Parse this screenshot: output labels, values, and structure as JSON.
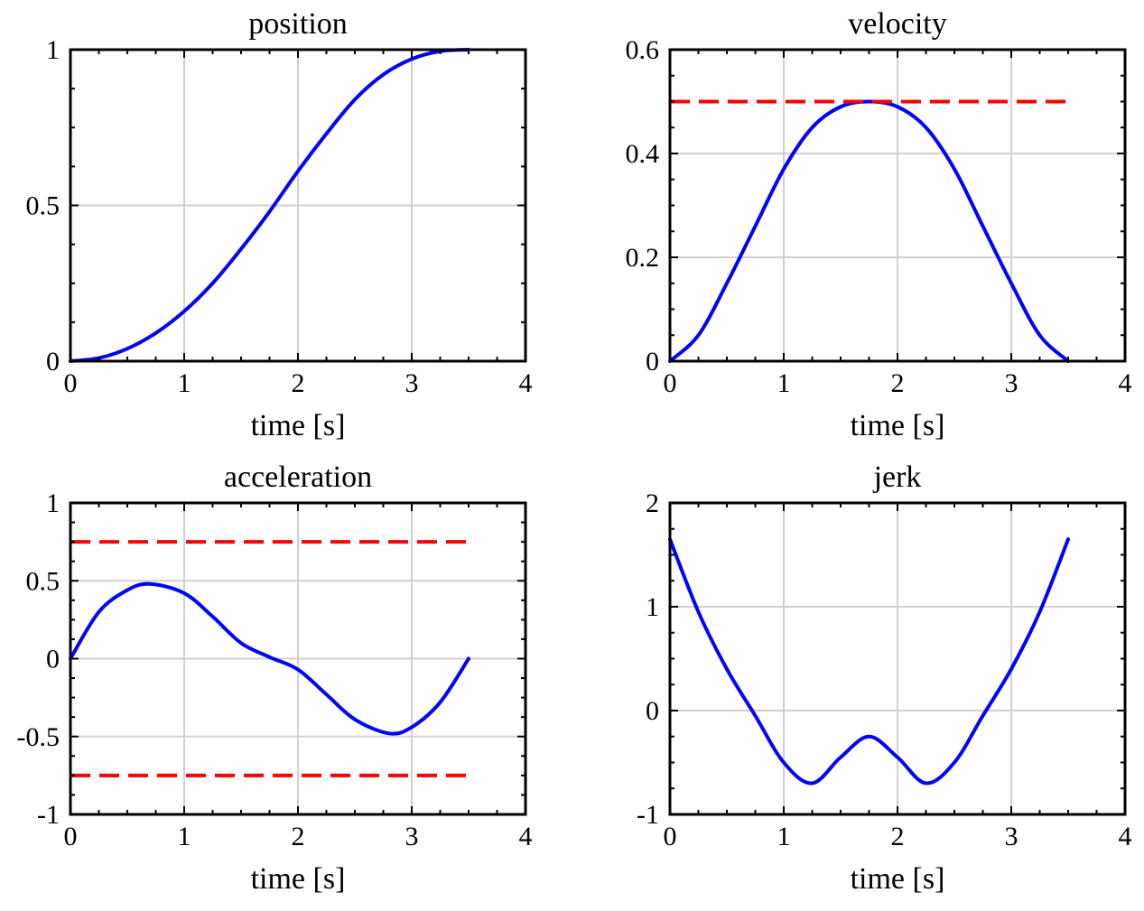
{
  "chart_data": [
    {
      "type": "line",
      "title": "position",
      "xlabel": "time [s]",
      "ylabel": "",
      "xlim": [
        0,
        4
      ],
      "ylim": [
        0,
        1
      ],
      "xticks": [
        0,
        1,
        2,
        3,
        4
      ],
      "xtick_labels": [
        "0",
        "1",
        "2",
        "3",
        "4"
      ],
      "yticks": [
        0,
        0.5,
        1
      ],
      "ytick_labels": [
        "0",
        "0.5",
        "1"
      ],
      "minor_ticks_per_major": 4,
      "grid": true,
      "series": [
        {
          "name": "position",
          "color": "#0000ff",
          "style": "solid",
          "x": [
            0,
            0.25,
            0.5,
            0.75,
            1.0,
            1.25,
            1.5,
            1.75,
            2.0,
            2.25,
            2.5,
            2.75,
            3.0,
            3.25,
            3.5
          ],
          "y": [
            0,
            0.01,
            0.04,
            0.09,
            0.16,
            0.25,
            0.36,
            0.48,
            0.61,
            0.73,
            0.84,
            0.92,
            0.97,
            0.995,
            1.0
          ]
        }
      ]
    },
    {
      "type": "line",
      "title": "velocity",
      "xlabel": "time [s]",
      "ylabel": "",
      "xlim": [
        0,
        4
      ],
      "ylim": [
        0,
        0.6
      ],
      "xticks": [
        0,
        1,
        2,
        3,
        4
      ],
      "xtick_labels": [
        "0",
        "1",
        "2",
        "3",
        "4"
      ],
      "yticks": [
        0,
        0.2,
        0.4,
        0.6
      ],
      "ytick_labels": [
        "0",
        "0.2",
        "0.4",
        "0.6"
      ],
      "minor_ticks_per_major": 4,
      "grid": true,
      "series": [
        {
          "name": "velocity",
          "color": "#0000ff",
          "style": "solid",
          "x": [
            0,
            0.25,
            0.5,
            0.75,
            1.0,
            1.25,
            1.5,
            1.75,
            2.0,
            2.25,
            2.5,
            2.75,
            3.0,
            3.25,
            3.5
          ],
          "y": [
            0,
            0.05,
            0.15,
            0.26,
            0.37,
            0.45,
            0.49,
            0.5,
            0.49,
            0.45,
            0.37,
            0.26,
            0.15,
            0.05,
            0
          ]
        },
        {
          "name": "velocity limit",
          "color": "#ff0000",
          "style": "dashed",
          "x": [
            0,
            3.5
          ],
          "y": [
            0.5,
            0.5
          ]
        }
      ]
    },
    {
      "type": "line",
      "title": "acceleration",
      "xlabel": "time [s]",
      "ylabel": "",
      "xlim": [
        0,
        4
      ],
      "ylim": [
        -1,
        1
      ],
      "xticks": [
        0,
        1,
        2,
        3,
        4
      ],
      "xtick_labels": [
        "0",
        "1",
        "2",
        "3",
        "4"
      ],
      "yticks": [
        -1,
        -0.5,
        0,
        0.5,
        1
      ],
      "ytick_labels": [
        "-1",
        "-0.5",
        "0",
        "0.5",
        "1"
      ],
      "minor_ticks_per_major": 4,
      "grid": true,
      "series": [
        {
          "name": "acceleration",
          "color": "#0000ff",
          "style": "solid",
          "x": [
            0,
            0.25,
            0.5,
            0.7,
            1.0,
            1.25,
            1.5,
            1.75,
            2.0,
            2.25,
            2.5,
            2.8,
            3.0,
            3.25,
            3.5
          ],
          "y": [
            0,
            0.3,
            0.44,
            0.48,
            0.42,
            0.27,
            0.1,
            0.01,
            -0.07,
            -0.23,
            -0.39,
            -0.48,
            -0.44,
            -0.28,
            0
          ]
        },
        {
          "name": "acceleration upper limit",
          "color": "#ff0000",
          "style": "dashed",
          "x": [
            0,
            3.5
          ],
          "y": [
            0.75,
            0.75
          ]
        },
        {
          "name": "acceleration lower limit",
          "color": "#ff0000",
          "style": "dashed",
          "x": [
            0,
            3.5
          ],
          "y": [
            -0.75,
            -0.75
          ]
        }
      ]
    },
    {
      "type": "line",
      "title": "jerk",
      "xlabel": "time [s]",
      "ylabel": "",
      "xlim": [
        0,
        4
      ],
      "ylim": [
        -1,
        2
      ],
      "xticks": [
        0,
        1,
        2,
        3,
        4
      ],
      "xtick_labels": [
        "0",
        "1",
        "2",
        "3",
        "4"
      ],
      "yticks": [
        -1,
        0,
        1,
        2
      ],
      "ytick_labels": [
        "-1",
        "0",
        "1",
        "2"
      ],
      "minor_ticks_per_major": 4,
      "grid": true,
      "series": [
        {
          "name": "jerk",
          "color": "#0000ff",
          "style": "solid",
          "x": [
            0,
            0.25,
            0.5,
            0.75,
            1.0,
            1.25,
            1.5,
            1.75,
            2.0,
            2.25,
            2.5,
            2.75,
            3.0,
            3.25,
            3.5
          ],
          "y": [
            1.65,
            0.95,
            0.4,
            -0.05,
            -0.5,
            -0.7,
            -0.45,
            -0.25,
            -0.45,
            -0.7,
            -0.5,
            -0.05,
            0.4,
            0.95,
            1.65
          ]
        }
      ]
    }
  ]
}
